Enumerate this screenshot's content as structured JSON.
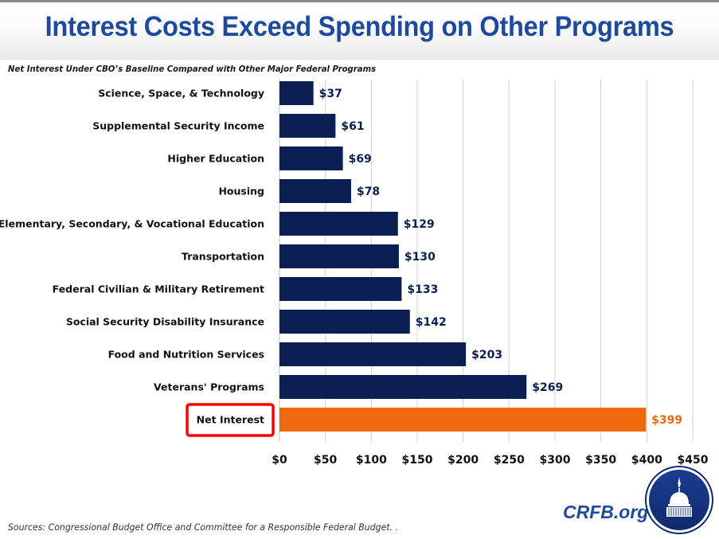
{
  "header": {
    "title": "Interest Costs Exceed Spending on Other Programs",
    "subtitle": "Net Interest Under CBO’s Baseline Compared with Other Major Federal Programs"
  },
  "footer": {
    "source": "Sources: Congressional  Budget Office and Committee for a Responsible Federal Budget. .",
    "brand": "CRFB.org",
    "logo_icon": "capitol-dome-icon"
  },
  "highlight": {
    "target_category": "Net Interest",
    "color": "#ff0000"
  },
  "colors": {
    "bar_default": "#0b1f52",
    "bar_highlight": "#ee6a0f",
    "label_default": "#0b1f52",
    "label_highlight": "#ee6a0f",
    "title": "#1d4a9c",
    "gridline": "#d0d0d0"
  },
  "chart_data": {
    "type": "bar",
    "orientation": "horizontal",
    "title": "Net Interest Under CBO’s Baseline Compared with Other Major Federal Programs",
    "xlabel": "",
    "ylabel": "",
    "categories": [
      "Science, Space, & Technology",
      "Supplemental Security Income",
      "Higher Education",
      "Housing",
      "Elementary, Secondary, & Vocational Education",
      "Transportation",
      "Federal Civilian & Military Retirement",
      "Social Security Disability Insurance",
      "Food and Nutrition Services",
      "Veterans' Programs",
      "Net Interest"
    ],
    "values": [
      37,
      61,
      69,
      78,
      129,
      130,
      133,
      142,
      203,
      269,
      399
    ],
    "value_labels": [
      "$37",
      "$61",
      "$69",
      "$78",
      "$129",
      "$130",
      "$133",
      "$142",
      "$203",
      "$269",
      "$399"
    ],
    "highlighted": [
      false,
      false,
      false,
      false,
      false,
      false,
      false,
      false,
      false,
      false,
      true
    ],
    "xlim": [
      0,
      450
    ],
    "x_ticks": [
      0,
      50,
      100,
      150,
      200,
      250,
      300,
      350,
      400,
      450
    ],
    "x_tick_labels": [
      "$0",
      "$50",
      "$100",
      "$150",
      "$200",
      "$250",
      "$300",
      "$350",
      "$400",
      "$450"
    ],
    "grid": true,
    "legend": "none"
  }
}
